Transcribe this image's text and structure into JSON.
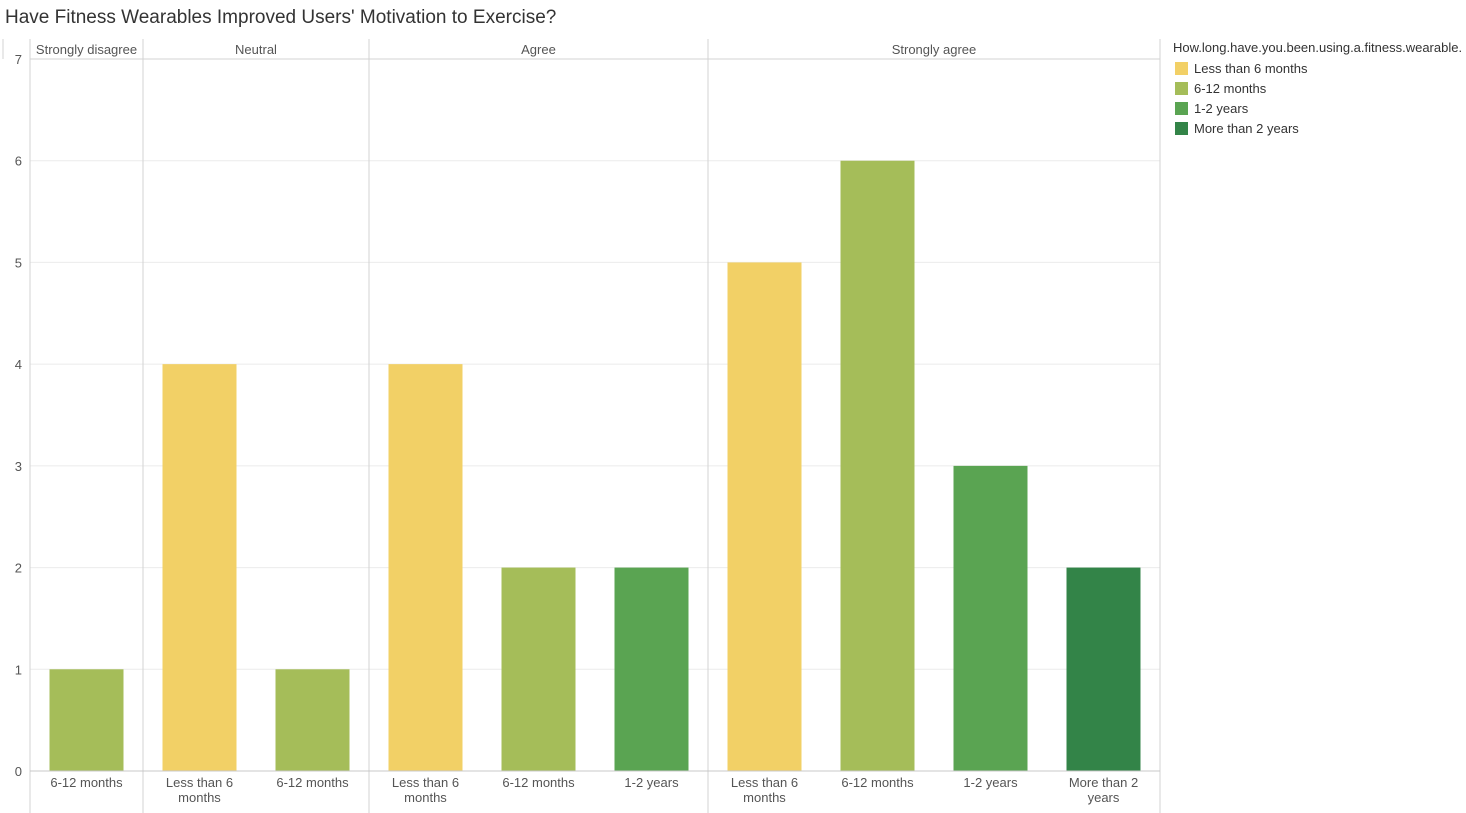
{
  "chart_data": {
    "type": "bar",
    "title": "Have Fitness Wearables Improved Users' Motivation to Exercise?",
    "xlabel": "",
    "ylabel": "",
    "ylim": [
      0,
      7
    ],
    "y_ticks": [
      0,
      1,
      2,
      3,
      4,
      5,
      6,
      7
    ],
    "grid": true,
    "legend_position": "right",
    "legend_title": "How.long.have.you.been.using.a.fitness.wearable.",
    "legend": [
      {
        "name": "Less than 6 months",
        "color": "#f2d066"
      },
      {
        "name": "6-12 months",
        "color": "#a5bd59"
      },
      {
        "name": "1-2 years",
        "color": "#5aa452"
      },
      {
        "name": "More than 2 years",
        "color": "#338448"
      }
    ],
    "panels": [
      {
        "header": "Strongly disagree",
        "bars": [
          {
            "category": "6-12 months",
            "value": 1
          }
        ]
      },
      {
        "header": "Neutral",
        "bars": [
          {
            "category": "Less than 6 months",
            "value": 4
          },
          {
            "category": "6-12 months",
            "value": 1
          }
        ]
      },
      {
        "header": "Agree",
        "bars": [
          {
            "category": "Less than 6 months",
            "value": 4
          },
          {
            "category": "6-12 months",
            "value": 2
          },
          {
            "category": "1-2 years",
            "value": 2
          }
        ]
      },
      {
        "header": "Strongly agree",
        "bars": [
          {
            "category": "Less than 6 months",
            "value": 5
          },
          {
            "category": "6-12 months",
            "value": 6
          },
          {
            "category": "1-2 years",
            "value": 3
          },
          {
            "category": "More than 2 years",
            "value": 2
          }
        ]
      }
    ]
  }
}
